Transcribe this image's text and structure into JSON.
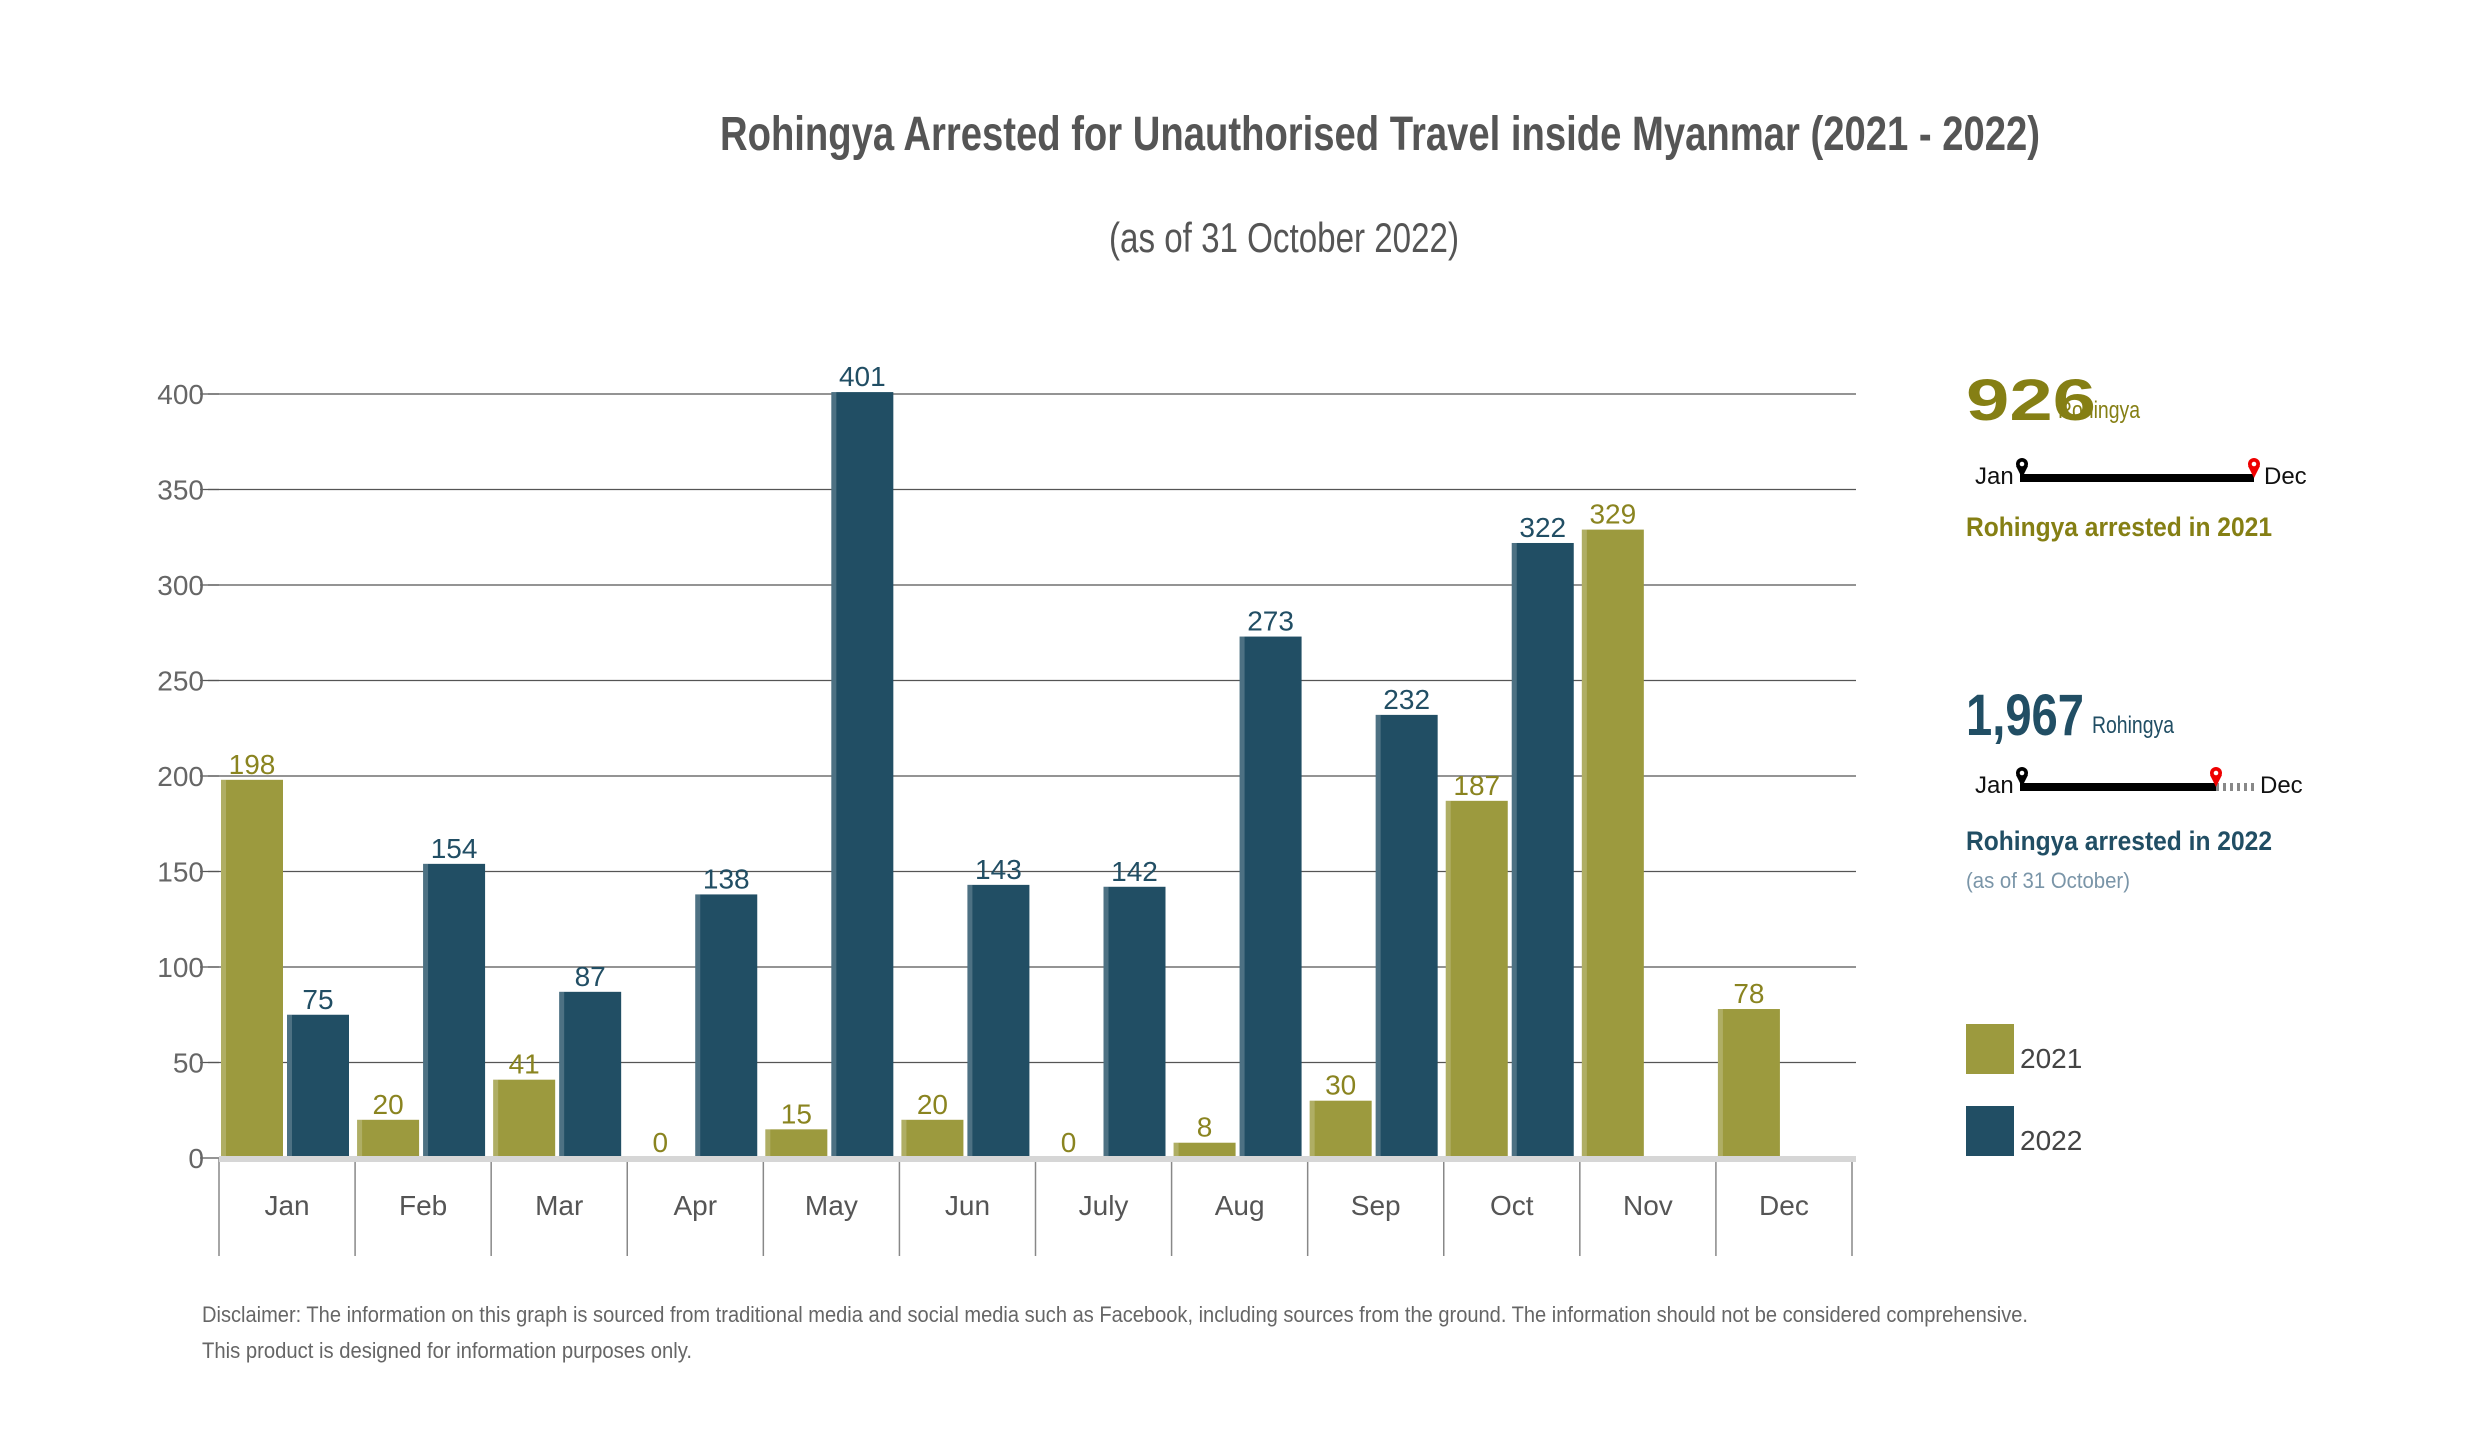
{
  "chart_data": {
    "type": "bar",
    "title": "Rohingya Arrested for Unauthorised Travel inside Myanmar (2021 - 2022)",
    "subtitle": "(as of 31 October 2022)",
    "xlabel": "",
    "ylabel": "",
    "ylim": [
      0,
      400
    ],
    "yticks": [
      0,
      50,
      100,
      150,
      200,
      250,
      300,
      350,
      400
    ],
    "grid": true,
    "legend_position": "right",
    "categories": [
      "Jan",
      "Feb",
      "Mar",
      "Apr",
      "May",
      "Jun",
      "July",
      "Aug",
      "Sep",
      "Oct",
      "Nov",
      "Dec"
    ],
    "series": [
      {
        "name": "2021",
        "color": "#9c9a3e",
        "label_color": "#8a8420",
        "values": [
          198,
          20,
          41,
          0,
          15,
          20,
          0,
          8,
          30,
          187,
          329,
          78
        ]
      },
      {
        "name": "2022",
        "color": "#214e64",
        "label_color": "#214e64",
        "values": [
          75,
          154,
          87,
          138,
          401,
          143,
          142,
          273,
          232,
          322,
          null,
          null
        ]
      }
    ]
  },
  "summary": {
    "y2021": {
      "total": "926",
      "unit": "Rohingya",
      "start": "Jan",
      "end": "Dec",
      "caption": "Rohingya arrested in 2021",
      "progress": 1.0
    },
    "y2022": {
      "total": "1,967",
      "unit": "Rohingya",
      "start": "Jan",
      "end": "Dec",
      "caption": "Rohingya arrested in 2022",
      "note": "(as of 31 October)",
      "progress": 0.83
    }
  },
  "legend": [
    "2021",
    "2022"
  ],
  "disclaimer": {
    "line1": "Disclaimer: The information on this graph is sourced from traditional media and social media such as Facebook, including sources from the ground. The information should not be considered comprehensive.",
    "line2": "This product is designed for information purposes only."
  }
}
